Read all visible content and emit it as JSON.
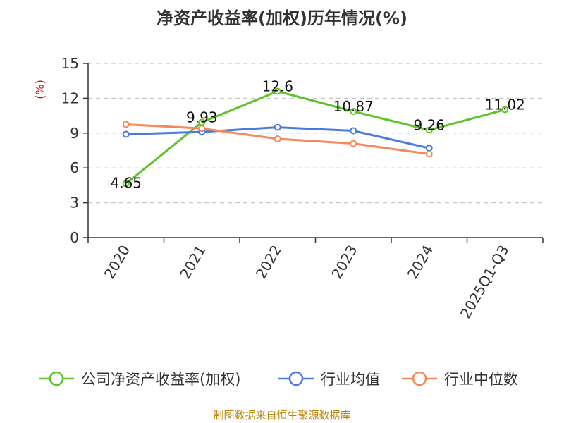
{
  "chart_data": {
    "type": "line",
    "title": "净资产收益率(加权)历年情况(%)",
    "ylabel": "(%)",
    "categories": [
      "2020",
      "2021",
      "2022",
      "2023",
      "2024",
      "2025Q1-Q3"
    ],
    "ylim": [
      0,
      15
    ],
    "yticks": [
      0,
      3,
      6,
      9,
      12,
      15
    ],
    "grid": true,
    "legend_position": "bottom",
    "series": [
      {
        "name": "公司净资产收益率(加权)",
        "color": "#5ec22b",
        "values": [
          4.65,
          9.93,
          12.6,
          10.87,
          9.26,
          11.02
        ],
        "labels": [
          "4.65",
          "9.93",
          "12.6",
          "10.87",
          "9.26",
          "11.02"
        ]
      },
      {
        "name": "行业均值",
        "color": "#4a7bdc",
        "values": [
          8.9,
          9.1,
          9.5,
          9.2,
          7.7,
          null
        ]
      },
      {
        "name": "行业中位数",
        "color": "#f5895a",
        "values": [
          9.75,
          9.4,
          8.5,
          8.1,
          7.2,
          null
        ]
      }
    ]
  },
  "source": "制图数据来自恒生聚源数据库"
}
